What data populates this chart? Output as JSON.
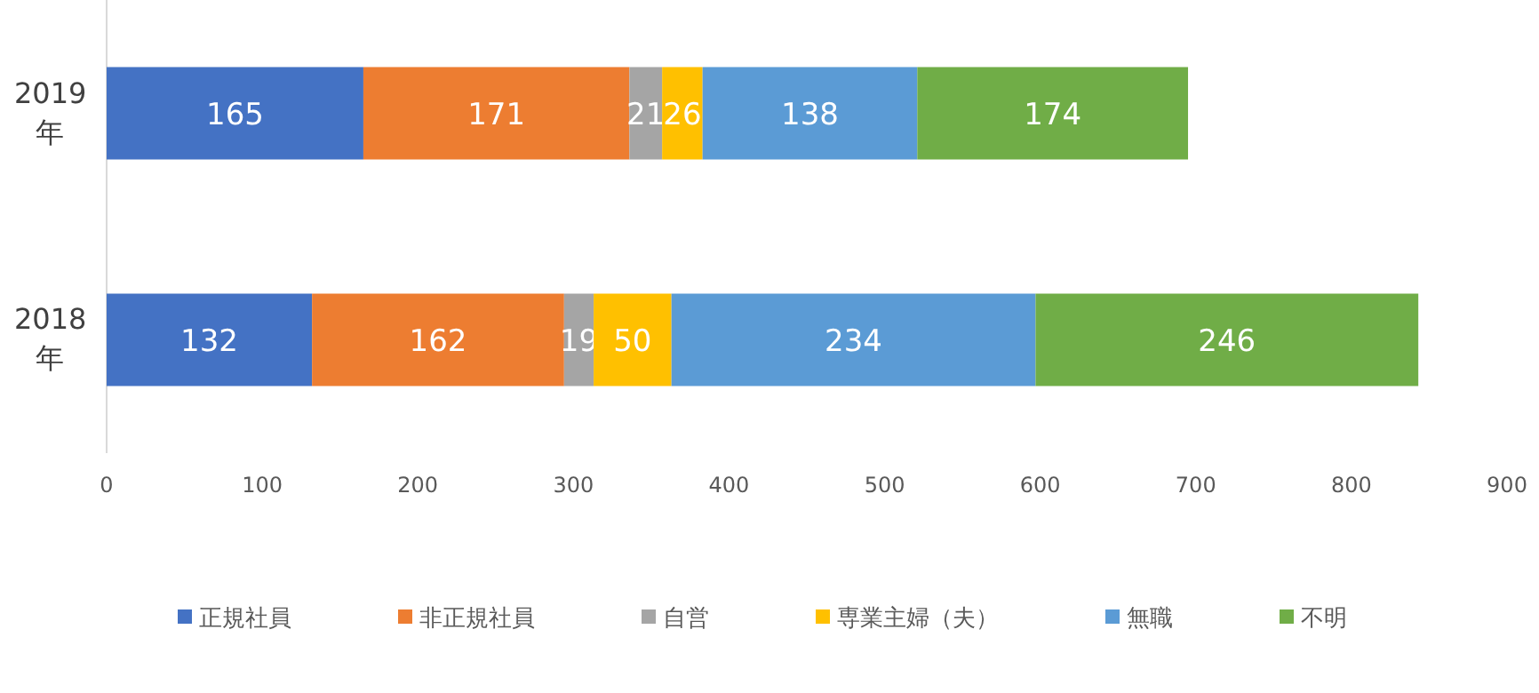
{
  "chart_data": {
    "type": "bar",
    "orientation": "horizontal",
    "stacked": true,
    "categories": [
      "2019年",
      "2018年"
    ],
    "series": [
      {
        "name": "正規社員",
        "color": "#4472c4",
        "values": [
          165,
          132
        ]
      },
      {
        "name": "非正規社員",
        "color": "#ed7d31",
        "values": [
          171,
          162
        ]
      },
      {
        "name": "自営",
        "color": "#a5a5a5",
        "values": [
          21,
          19
        ]
      },
      {
        "name": "専業主婦（夫）",
        "color": "#ffc000",
        "values": [
          26,
          50
        ]
      },
      {
        "name": "無職",
        "color": "#5b9bd5",
        "values": [
          138,
          234
        ]
      },
      {
        "name": "不明",
        "color": "#70ad47",
        "values": [
          174,
          246
        ]
      }
    ],
    "xlim": [
      0,
      900
    ],
    "xticks": [
      0,
      100,
      200,
      300,
      400,
      500,
      600,
      700,
      800,
      900
    ],
    "data_labels": true,
    "legend": "bottom",
    "grid": false
  }
}
